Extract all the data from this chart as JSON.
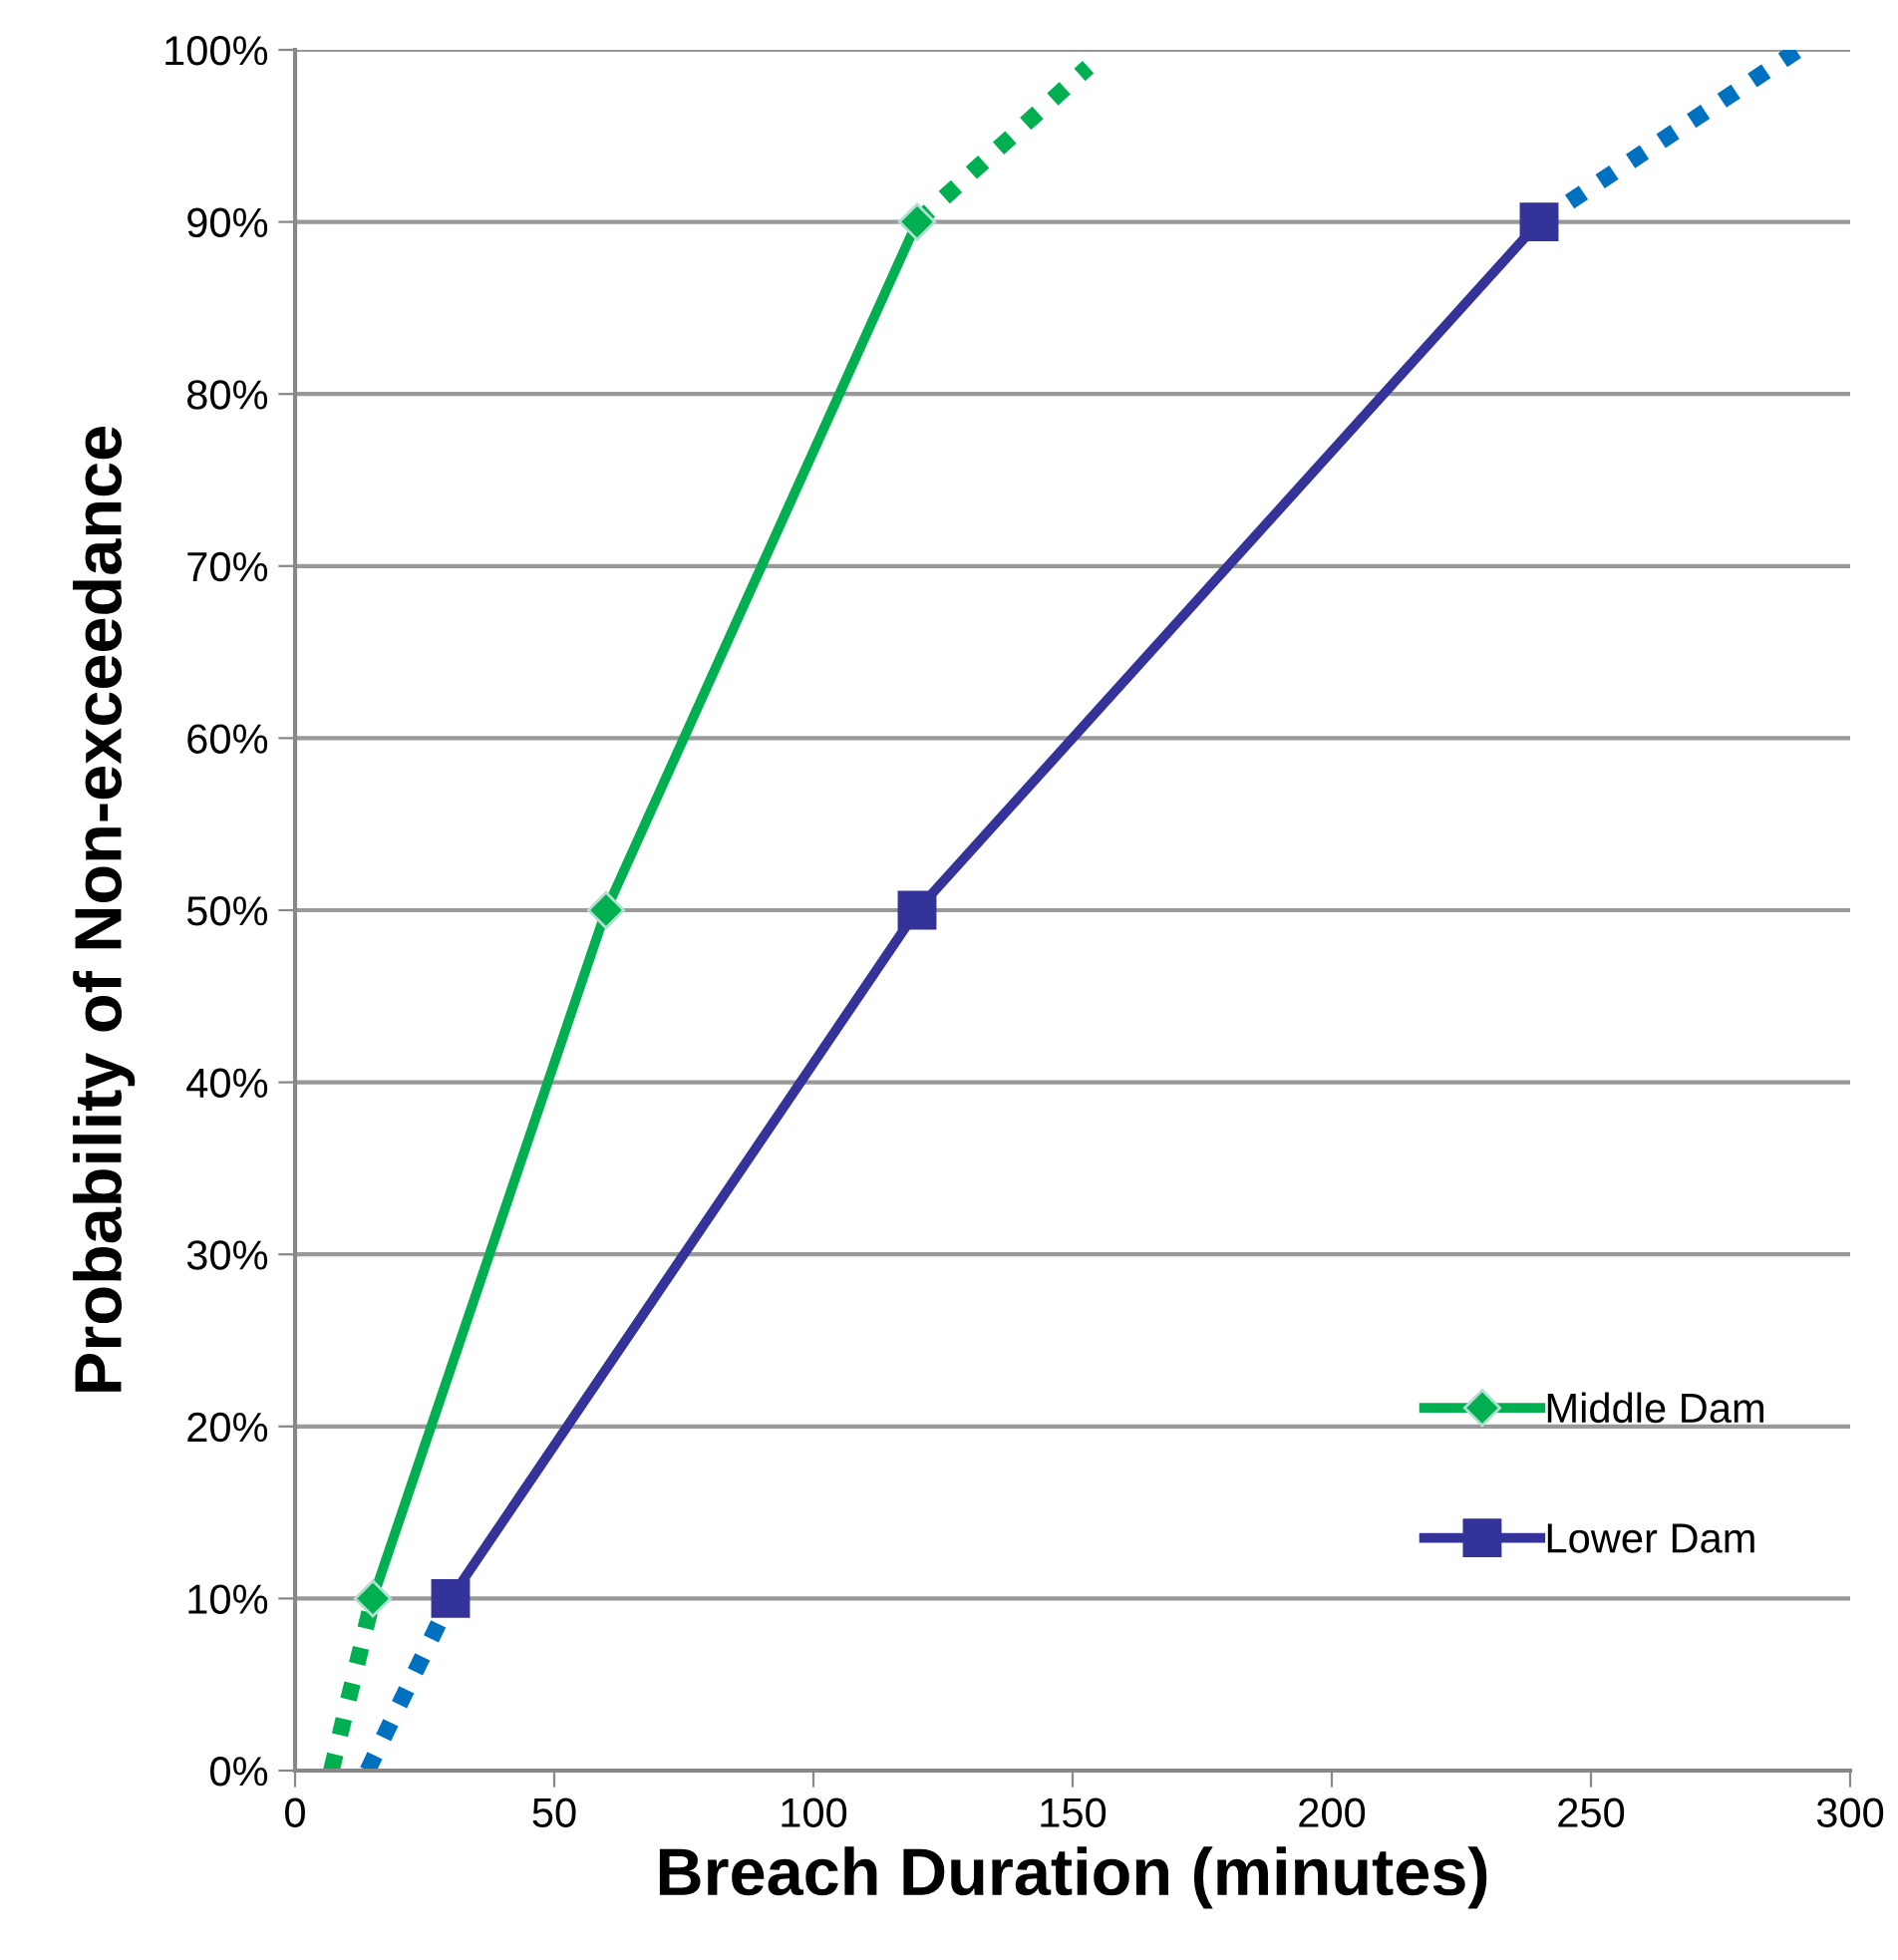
{
  "chart_data": {
    "type": "line",
    "xlabel": "Breach Duration (minutes)",
    "ylabel": "Probability of Non-exceedance",
    "xlim": [
      0,
      300
    ],
    "xticks": [
      0,
      50,
      100,
      150,
      200,
      250,
      300
    ],
    "ylim": [
      0,
      100
    ],
    "yticks": [
      {
        "value": 0,
        "label": "0%"
      },
      {
        "value": 10,
        "label": "10%"
      },
      {
        "value": 20,
        "label": "20%"
      },
      {
        "value": 30,
        "label": "30%"
      },
      {
        "value": 40,
        "label": "40%"
      },
      {
        "value": 50,
        "label": "50%"
      },
      {
        "value": 60,
        "label": "60%"
      },
      {
        "value": 70,
        "label": "70%"
      },
      {
        "value": 80,
        "label": "80%"
      },
      {
        "value": 90,
        "label": "90%"
      },
      {
        "value": 100,
        "label": "100%"
      }
    ],
    "grid": "y",
    "legend": "bottom right",
    "series": [
      {
        "name": "Middle Dam",
        "color": "#00b050",
        "x": [
          15,
          60,
          120
        ],
        "values": [
          10,
          50,
          90
        ],
        "marker": "diamond",
        "line_style": "solid"
      },
      {
        "name": "Lower Dam",
        "color": "#333399",
        "x": [
          30,
          120,
          240
        ],
        "values": [
          10,
          50,
          90
        ],
        "marker": "square",
        "line_style": "solid"
      },
      {
        "color": "#00b050",
        "x": [
          7,
          15
        ],
        "values": [
          0,
          10
        ],
        "marker": "none",
        "line_style": "dotted"
      },
      {
        "color": "#00b050",
        "x": [
          120,
          153
        ],
        "values": [
          90,
          99
        ],
        "marker": "none",
        "line_style": "dotted"
      },
      {
        "color": "#0070c0",
        "x": [
          14,
          30
        ],
        "values": [
          0,
          10
        ],
        "marker": "none",
        "line_style": "dotted"
      },
      {
        "color": "#0070c0",
        "x": [
          240,
          290
        ],
        "values": [
          90,
          100
        ],
        "marker": "none",
        "line_style": "dotted"
      }
    ]
  }
}
